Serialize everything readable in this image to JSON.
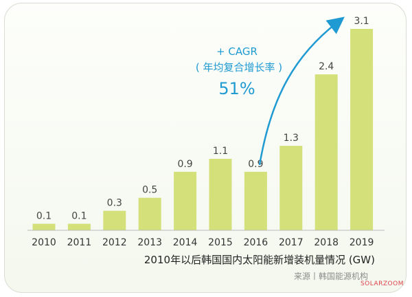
{
  "chart_data": {
    "type": "bar",
    "categories": [
      "2010",
      "2011",
      "2012",
      "2013",
      "2014",
      "2015",
      "2016",
      "2017",
      "2018",
      "2019"
    ],
    "values": [
      0.1,
      0.1,
      0.3,
      0.5,
      0.9,
      1.1,
      0.9,
      1.3,
      2.4,
      3.1
    ],
    "data_labels": [
      "0.1",
      "0.1",
      "0.3",
      "0.5",
      "0.9",
      "1.1",
      "0.9",
      "1.3",
      "2.4",
      "3.1"
    ],
    "title": "2010年以后韩国国内太阳能新增装机量情况 (GW)",
    "xlabel": "",
    "ylabel": "",
    "ylim": [
      0,
      3.1
    ],
    "grid": false,
    "bar_color": "#d4e07a",
    "axis_color": "#bbbbbb",
    "annotation": {
      "line1": "+ CAGR",
      "line2": "( 年均复合增长率 )",
      "value": "51%",
      "color": "#1f9ad2"
    }
  },
  "source": "来源丨韩国能源机构",
  "watermark": "SOLARZOOM"
}
